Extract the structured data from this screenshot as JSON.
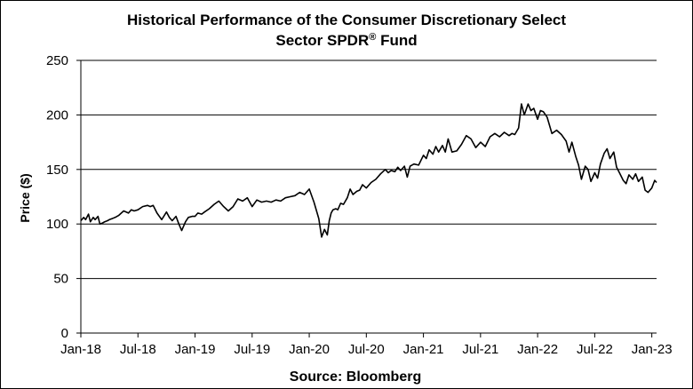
{
  "chart_data": {
    "type": "line",
    "title_line1": "Historical Performance of the Consumer Discretionary Select",
    "title_line2_prefix": "Sector SPDR",
    "title_line2_sup": "®",
    "title_line2_suffix": " Fund",
    "ylabel": "Price ($)",
    "xlabel": "Source: Bloomberg",
    "ylim": [
      0,
      250
    ],
    "yticks": [
      0,
      50,
      100,
      150,
      200,
      250
    ],
    "grid": true,
    "x_range_months": [
      0,
      60.5
    ],
    "x_ticks": [
      {
        "label": "Jan-18",
        "month": 0
      },
      {
        "label": "Jul-18",
        "month": 6
      },
      {
        "label": "Jan-19",
        "month": 12
      },
      {
        "label": "Jul-19",
        "month": 18
      },
      {
        "label": "Jan-20",
        "month": 24
      },
      {
        "label": "Jul-20",
        "month": 30
      },
      {
        "label": "Jan-21",
        "month": 36
      },
      {
        "label": "Jul-21",
        "month": 42
      },
      {
        "label": "Jan-22",
        "month": 48
      },
      {
        "label": "Jul-22",
        "month": 54
      },
      {
        "label": "Jan-23",
        "month": 60
      }
    ],
    "series": [
      {
        "name": "Consumer Discretionary Select Sector SPDR Fund",
        "color": "#000000",
        "x": [
          0,
          0.3,
          0.5,
          0.8,
          1.0,
          1.3,
          1.5,
          1.8,
          2.0,
          2.3,
          2.5,
          2.8,
          3.0,
          3.3,
          3.6,
          4.0,
          4.5,
          5.0,
          5.3,
          5.6,
          6.0,
          6.5,
          7.0,
          7.3,
          7.6,
          8.0,
          8.5,
          9.0,
          9.3,
          9.6,
          10.0,
          10.3,
          10.6,
          11.0,
          11.3,
          11.7,
          12.0,
          12.3,
          12.7,
          13.0,
          13.5,
          14.0,
          14.5,
          15.0,
          15.5,
          16.0,
          16.5,
          17.0,
          17.5,
          18.0,
          18.5,
          19.0,
          19.5,
          20.0,
          20.5,
          21.0,
          21.5,
          22.0,
          22.5,
          23.0,
          23.5,
          24.0,
          24.5,
          25.0,
          25.3,
          25.6,
          25.9,
          26.1,
          26.3,
          26.5,
          26.8,
          27.0,
          27.3,
          27.6,
          28.0,
          28.3,
          28.6,
          29.0,
          29.3,
          29.6,
          30.0,
          30.5,
          31.0,
          31.5,
          32.0,
          32.3,
          32.6,
          33.0,
          33.3,
          33.6,
          34.0,
          34.3,
          34.6,
          35.0,
          35.5,
          36.0,
          36.3,
          36.6,
          37.0,
          37.3,
          37.6,
          38.0,
          38.3,
          38.6,
          39.0,
          39.5,
          40.0,
          40.5,
          41.0,
          41.5,
          42.0,
          42.5,
          43.0,
          43.5,
          44.0,
          44.5,
          45.0,
          45.3,
          45.6,
          46.0,
          46.3,
          46.6,
          47.0,
          47.3,
          47.6,
          48.0,
          48.3,
          48.6,
          49.0,
          49.5,
          50.0,
          50.5,
          51.0,
          51.3,
          51.6,
          52.0,
          52.3,
          52.6,
          53.0,
          53.3,
          53.6,
          54.0,
          54.3,
          54.6,
          55.0,
          55.3,
          55.6,
          56.0,
          56.3,
          56.6,
          57.0,
          57.3,
          57.6,
          58.0,
          58.3,
          58.6,
          59.0,
          59.3,
          59.6,
          60.0,
          60.3,
          60.5
        ],
        "values": [
          103,
          106,
          104,
          109,
          102,
          106,
          104,
          107,
          100,
          101,
          102,
          103,
          104,
          105,
          106,
          108,
          112,
          110,
          113,
          112,
          113,
          116,
          117,
          116,
          117,
          110,
          104,
          111,
          106,
          103,
          107,
          100,
          94,
          102,
          106,
          107,
          107,
          110,
          109,
          111,
          114,
          118,
          121,
          116,
          112,
          116,
          123,
          121,
          124,
          116,
          122,
          120,
          121,
          120,
          122,
          121,
          124,
          125,
          126,
          129,
          127,
          132,
          120,
          105,
          88,
          95,
          90,
          103,
          110,
          113,
          114,
          113,
          119,
          118,
          124,
          132,
          127,
          130,
          131,
          136,
          133,
          138,
          141,
          146,
          150,
          147,
          149,
          148,
          152,
          149,
          153,
          143,
          153,
          155,
          154,
          163,
          160,
          168,
          164,
          171,
          166,
          172,
          166,
          178,
          166,
          167,
          173,
          181,
          178,
          170,
          175,
          171,
          180,
          183,
          180,
          184,
          181,
          183,
          182,
          188,
          210,
          200,
          210,
          204,
          206,
          196,
          204,
          203,
          198,
          183,
          186,
          182,
          176,
          166,
          175,
          162,
          154,
          141,
          153,
          150,
          139,
          147,
          142,
          155,
          165,
          169,
          160,
          166,
          152,
          147,
          140,
          137,
          145,
          141,
          146,
          139,
          143,
          131,
          129,
          133,
          140,
          138
        ]
      }
    ]
  }
}
